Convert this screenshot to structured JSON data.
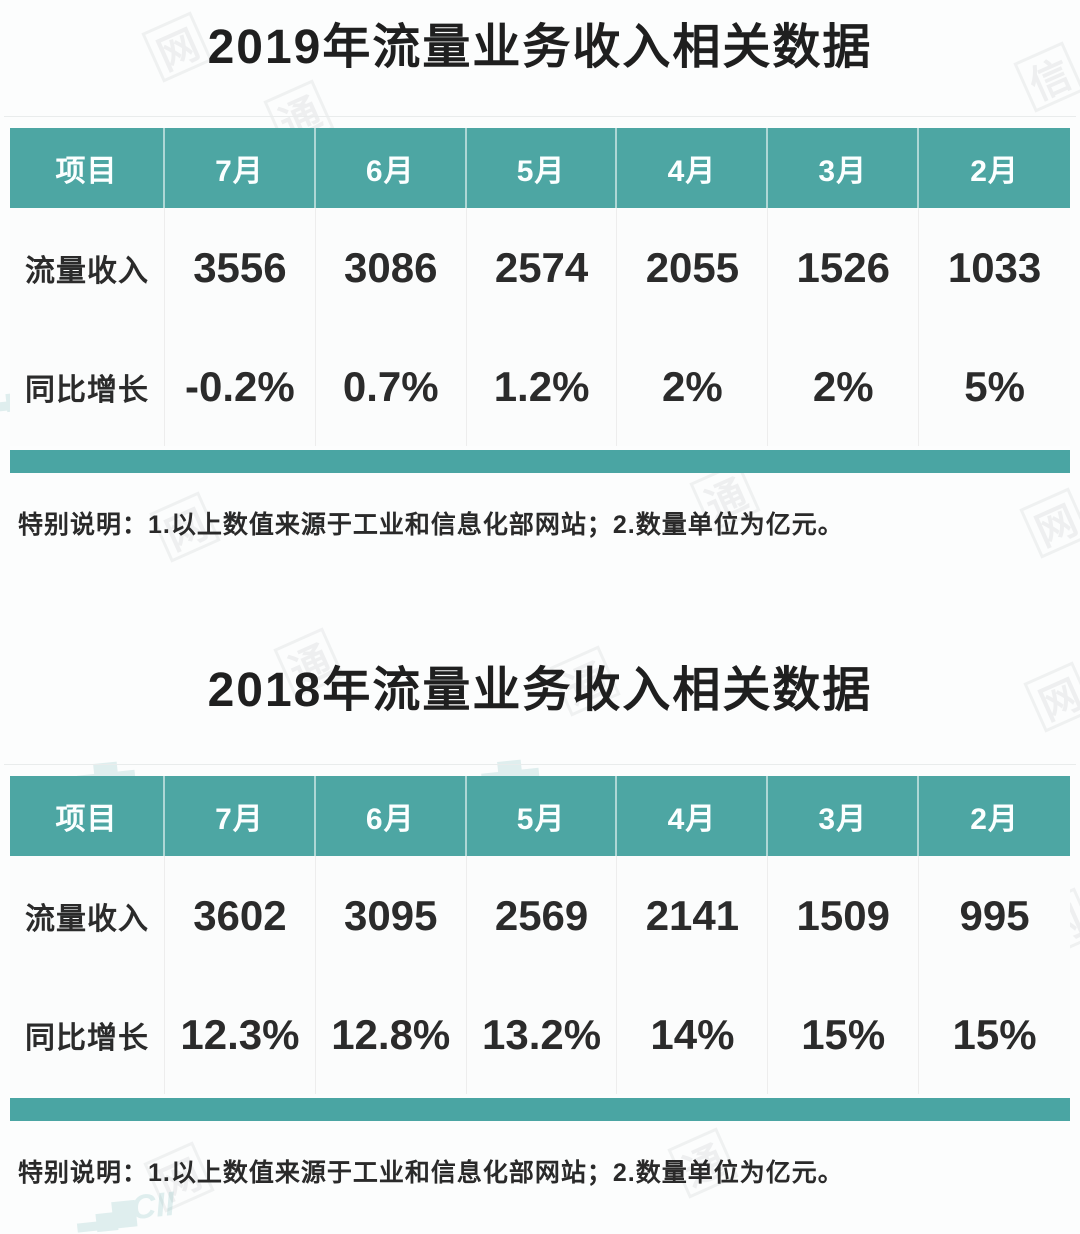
{
  "colors": {
    "teal_header": "#4da6a3",
    "teal_bar": "#4aa5a3",
    "title_text": "#1f1f1f",
    "body_text": "#2b2b2b"
  },
  "watermark": {
    "logo_text": "CII",
    "seal_chars": [
      "通",
      "信",
      "网"
    ]
  },
  "sections": [
    {
      "title": "2019年流量业务收入相关数据",
      "table": {
        "header": [
          "项目",
          "7月",
          "6月",
          "5月",
          "4月",
          "3月",
          "2月"
        ],
        "rows": [
          {
            "label": "流量收入",
            "values": [
              "3556",
              "3086",
              "2574",
              "2055",
              "1526",
              "1033"
            ]
          },
          {
            "label": "同比增长",
            "values": [
              "-0.2%",
              "0.7%",
              "1.2%",
              "2%",
              "2%",
              "5%"
            ]
          }
        ]
      },
      "note": "特别说明：1.以上数值来源于工业和信息化部网站；2.数量单位为亿元。"
    },
    {
      "title": "2018年流量业务收入相关数据",
      "table": {
        "header": [
          "项目",
          "7月",
          "6月",
          "5月",
          "4月",
          "3月",
          "2月"
        ],
        "rows": [
          {
            "label": "流量收入",
            "values": [
              "3602",
              "3095",
              "2569",
              "2141",
              "1509",
              "995"
            ]
          },
          {
            "label": "同比增长",
            "values": [
              "12.3%",
              "12.8%",
              "13.2%",
              "14%",
              "15%",
              "15%"
            ]
          }
        ]
      },
      "note": "特别说明：1.以上数值来源于工业和信息化部网站；2.数量单位为亿元。"
    }
  ],
  "chart_data": [
    {
      "type": "table",
      "title": "2019年流量业务收入相关数据",
      "columns": [
        "项目",
        "7月",
        "6月",
        "5月",
        "4月",
        "3月",
        "2月"
      ],
      "rows": [
        [
          "流量收入",
          3556,
          3086,
          2574,
          2055,
          1526,
          1033
        ],
        [
          "同比增长",
          "-0.2%",
          "0.7%",
          "1.2%",
          "2%",
          "2%",
          "5%"
        ]
      ],
      "note": "特别说明：1.以上数值来源于工业和信息化部网站；2.数量单位为亿元。"
    },
    {
      "type": "table",
      "title": "2018年流量业务收入相关数据",
      "columns": [
        "项目",
        "7月",
        "6月",
        "5月",
        "4月",
        "3月",
        "2月"
      ],
      "rows": [
        [
          "流量收入",
          3602,
          3095,
          2569,
          2141,
          1509,
          995
        ],
        [
          "同比增长",
          "12.3%",
          "12.8%",
          "13.2%",
          "14%",
          "15%",
          "15%"
        ]
      ],
      "note": "特别说明：1.以上数值来源于工业和信息化部网站；2.数量单位为亿元。"
    }
  ]
}
